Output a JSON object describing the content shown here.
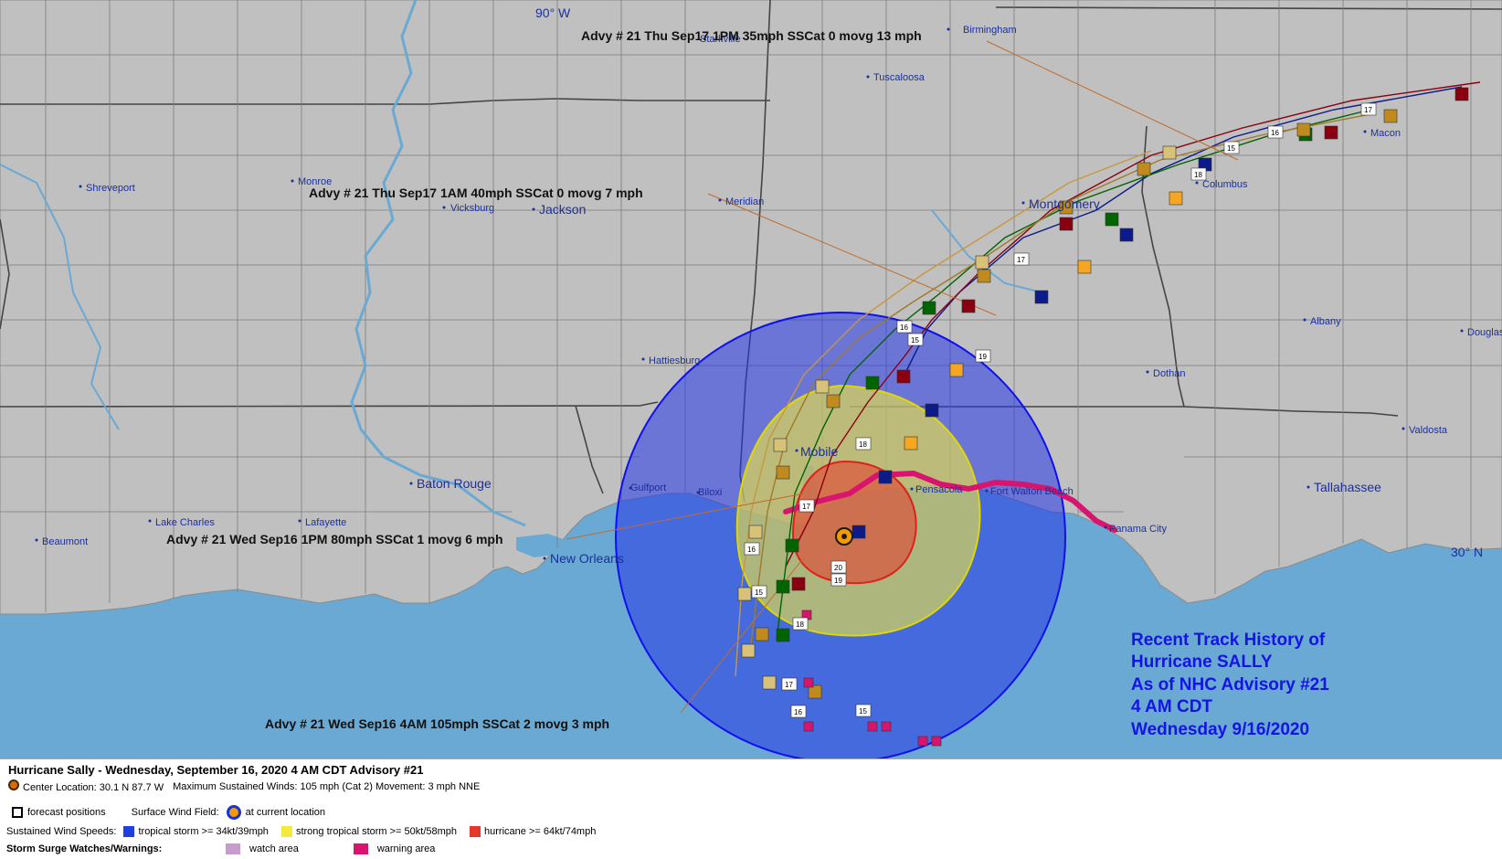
{
  "map": {
    "grid_labels": {
      "lon_90": "90° W",
      "lat_30": "30° N"
    },
    "cities": [
      {
        "name": "Birmingham"
      },
      {
        "name": "Tuscaloosa"
      },
      {
        "name": "Starkville"
      },
      {
        "name": "Shreveport"
      },
      {
        "name": "Monroe"
      },
      {
        "name": "Vicksburg"
      },
      {
        "name": "Jackson"
      },
      {
        "name": "Meridian"
      },
      {
        "name": "Montgomery"
      },
      {
        "name": "Columbus"
      },
      {
        "name": "Macon"
      },
      {
        "name": "Albany"
      },
      {
        "name": "Douglas"
      },
      {
        "name": "Dothan"
      },
      {
        "name": "Hattiesburg"
      },
      {
        "name": "Valdosta"
      },
      {
        "name": "Tallahassee"
      },
      {
        "name": "Mobile"
      },
      {
        "name": "Pensacola"
      },
      {
        "name": "Fort Walton Beach"
      },
      {
        "name": "Panama City"
      },
      {
        "name": "Gulfport"
      },
      {
        "name": "Biloxi"
      },
      {
        "name": "Baton Rouge"
      },
      {
        "name": "Lake Charles"
      },
      {
        "name": "Lafayette"
      },
      {
        "name": "Beaumont"
      },
      {
        "name": "New Orleans"
      }
    ],
    "advisory_labels": [
      "Advy # 21 Thu Sep17 1PM  35mph SSCat 0 movg 13 mph",
      "Advy # 21 Thu Sep17 1AM  40mph SSCat 0 movg 7 mph",
      "Advy # 21 Wed Sep16 1PM  80mph SSCat 1 movg 6 mph",
      "Advy # 21 Wed Sep16 4AM  105mph SSCat 2 movg 3 mph"
    ],
    "history_box": [
      "Recent Track History of",
      "Hurricane SALLY",
      "As of NHC Advisory #21",
      "4 AM CDT",
      "Wednesday 9/16/2020"
    ],
    "day_markers": [
      "15",
      "16",
      "17",
      "18",
      "19",
      "20"
    ],
    "colors": {
      "land": "#c0c0c0",
      "water": "#6aa9d3",
      "tropical_storm": "#1f3fe0",
      "strong_tropical_storm": "#f2ea3c",
      "hurricane": "#e8372a",
      "surge_watch": "#c89bd0",
      "surge_warning": "#d8146e"
    }
  },
  "legend": {
    "title": "Hurricane Sally  -  Wednesday, September 16, 2020  4 AM CDT   Advisory #21",
    "center_location": "Center Location: 30.1 N  87.7 W",
    "max_winds": "Maximum Sustained Winds: 105 mph (Cat 2) Movement: 3 mph NNE",
    "forecast_positions": "forecast positions",
    "surface_wind_field": "Surface Wind Field:",
    "at_current_location": "at current location",
    "sustained_wind_speeds": "Sustained Wind Speeds:",
    "tropical_storm": "tropical storm >= 34kt/39mph",
    "strong_tropical_storm": "strong tropical storm >= 50kt/58mph",
    "hurricane": "hurricane >= 64kt/74mph",
    "storm_surge": "Storm Surge Watches/Warnings:",
    "watch_area": "watch area",
    "warning_area": "warning area"
  }
}
